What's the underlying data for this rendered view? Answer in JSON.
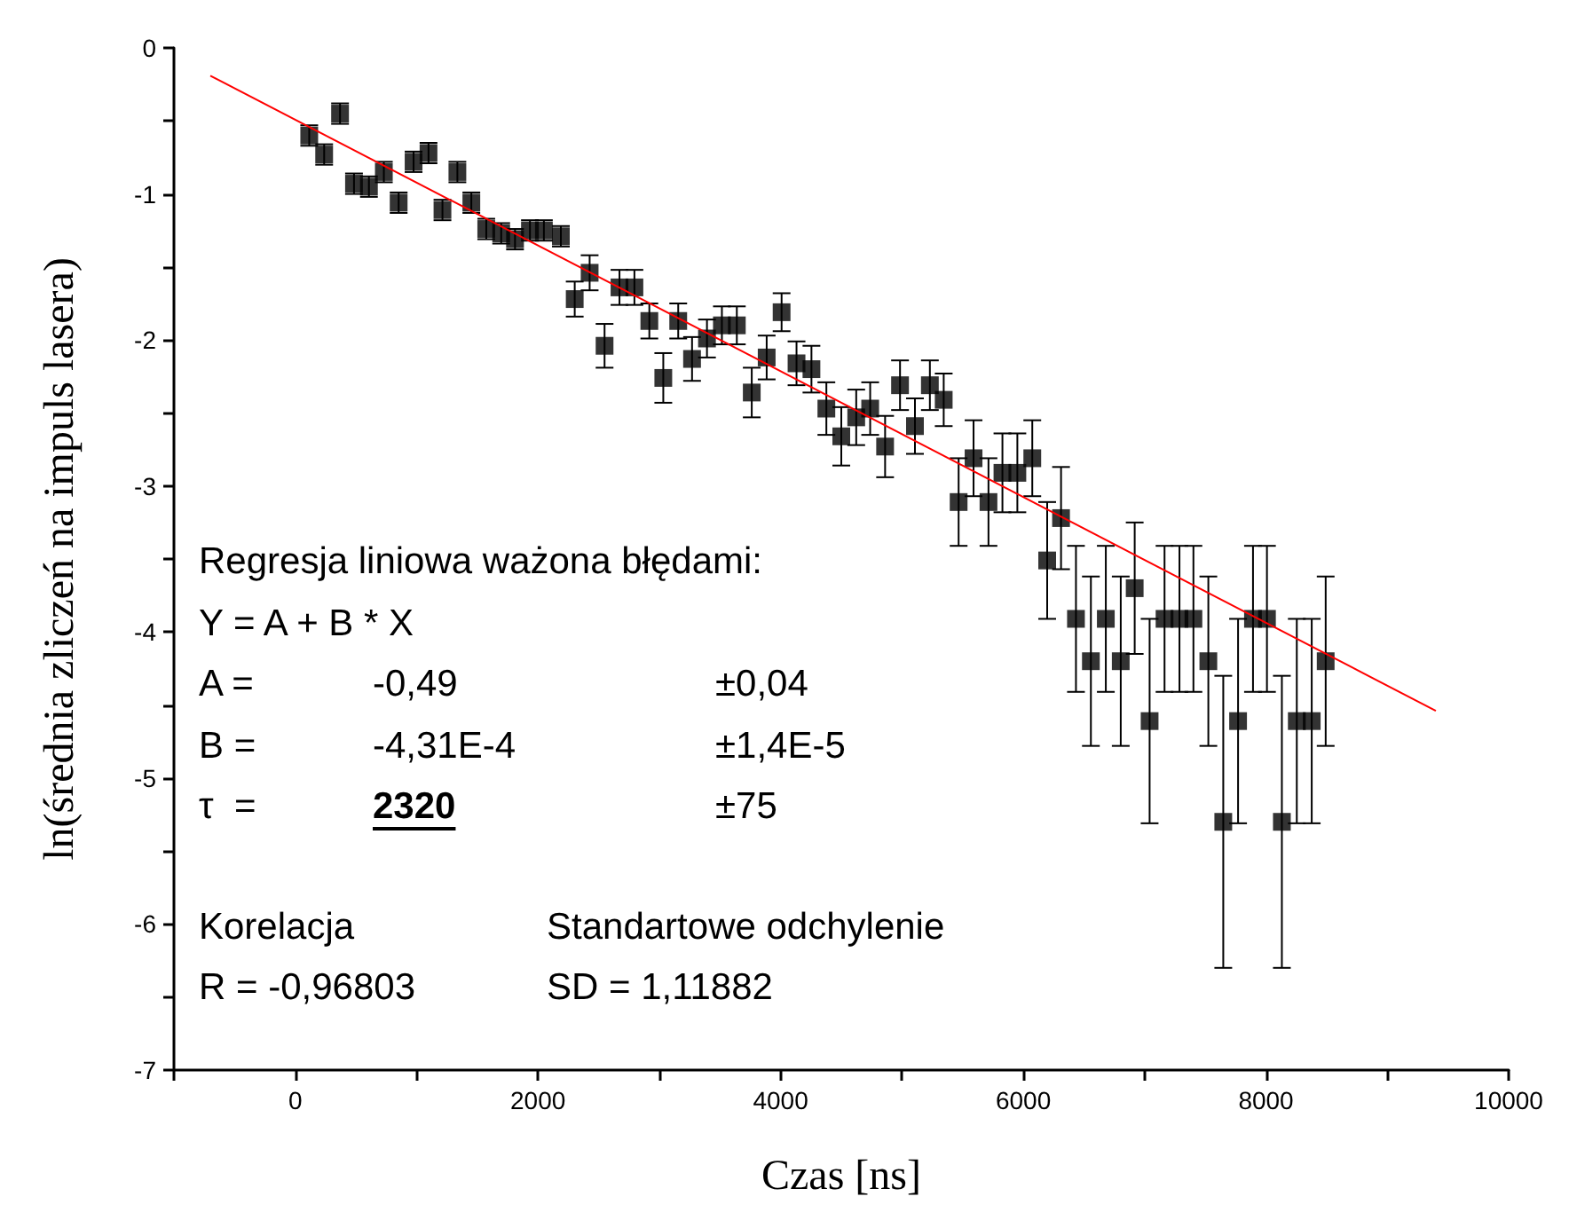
{
  "chart_data": {
    "type": "scatter",
    "xlabel": "Czas [ns]",
    "ylabel": "ln(średnia zliczeń na impuls lasera)",
    "xlim": [
      -1000,
      10000
    ],
    "xticks": [
      {
        "value": -1000,
        "label": null
      },
      0,
      {
        "value": 1000,
        "label": null
      },
      2000,
      {
        "value": 3000,
        "label": null
      },
      4000,
      {
        "value": 5000,
        "label": null
      },
      6000,
      {
        "value": 7000,
        "label": null
      },
      8000,
      {
        "value": 9000,
        "label": null
      },
      10000
    ],
    "ylim": [
      -7,
      0
    ],
    "yticks": [
      -7,
      {
        "value": -6.5,
        "label": null
      },
      -6,
      {
        "value": -5.5,
        "label": null
      },
      -5,
      {
        "value": -4.5,
        "label": null
      },
      -4,
      {
        "value": -3.5,
        "label": null
      },
      -3,
      {
        "value": -2.5,
        "label": null
      },
      -2,
      {
        "value": -1.5,
        "label": null
      },
      -1,
      {
        "value": -0.5,
        "label": null
      },
      0
    ],
    "series": [
      {
        "marker": "square",
        "color": "#000000",
        "x": [
          115,
          238,
          369,
          484,
          607,
          730,
          852,
          975,
          1098,
          1213,
          1336,
          1451,
          1574,
          1697,
          1811,
          1934,
          2049,
          2189,
          2303,
          2426,
          2549,
          2672,
          2795,
          2918,
          3033,
          3156,
          3270,
          3393,
          3516,
          3639,
          3762,
          3885,
          4008,
          4131,
          4254,
          4377,
          4500,
          4623,
          4738,
          4861,
          4984,
          5107,
          5230,
          5344,
          5467,
          5590,
          5713,
          5828,
          5951,
          6074,
          6197,
          6311,
          6434,
          6557,
          6680,
          6803,
          6918,
          7041,
          7164,
          7287,
          7402,
          7525,
          7648,
          7770,
          7893,
          8008,
          8131,
          8254,
          8377,
          8492
        ],
        "values": [
          -0.6,
          -0.73,
          -0.45,
          -0.93,
          -0.95,
          -0.85,
          -1.06,
          -0.78,
          -0.72,
          -1.11,
          -0.85,
          -1.06,
          -1.24,
          -1.27,
          -1.31,
          -1.25,
          -1.25,
          -1.29,
          -1.72,
          -1.54,
          -2.04,
          -1.64,
          -1.64,
          -1.87,
          -2.26,
          -1.87,
          -2.13,
          -1.99,
          -1.9,
          -1.9,
          -2.36,
          -2.12,
          -1.81,
          -2.16,
          -2.2,
          -2.47,
          -2.66,
          -2.53,
          -2.47,
          -2.73,
          -2.31,
          -2.59,
          -2.31,
          -2.41,
          -3.11,
          -2.81,
          -3.11,
          -2.91,
          -2.91,
          -2.81,
          -3.51,
          -3.22,
          -3.91,
          -4.2,
          -3.91,
          -4.2,
          -3.7,
          -4.61,
          -3.91,
          -3.91,
          -3.91,
          -4.2,
          -5.3,
          -4.61,
          -3.91,
          -3.91,
          -5.3,
          -4.61,
          -4.61,
          -4.2
        ],
        "errors": [
          0.07,
          0.07,
          0.07,
          0.07,
          0.07,
          0.07,
          0.07,
          0.07,
          0.07,
          0.07,
          0.07,
          0.07,
          0.07,
          0.07,
          0.07,
          0.07,
          0.07,
          0.07,
          0.12,
          0.12,
          0.15,
          0.12,
          0.12,
          0.12,
          0.17,
          0.12,
          0.15,
          0.13,
          0.13,
          0.13,
          0.17,
          0.15,
          0.13,
          0.15,
          0.16,
          0.18,
          0.2,
          0.19,
          0.18,
          0.21,
          0.17,
          0.19,
          0.17,
          0.18,
          0.3,
          0.26,
          0.3,
          0.27,
          0.27,
          0.26,
          0.4,
          0.35,
          0.5,
          0.58,
          0.5,
          0.58,
          0.45,
          0.7,
          0.5,
          0.5,
          0.5,
          0.58,
          1.0,
          0.7,
          0.5,
          0.5,
          1.0,
          0.7,
          0.7,
          0.58
        ]
      },
      {
        "type": "line",
        "color": "#ff0000",
        "x": [
          -700,
          9400
        ],
        "values": [
          -0.19,
          -4.54
        ]
      }
    ],
    "annotations": [
      "Regresja liniowa ważona błędami:",
      "Y = A + B * X",
      "A =",
      "-0,49",
      "±0,04",
      "B =",
      "-4,31E-4",
      "±1,4E-5",
      "τ  =",
      "2320",
      "±75",
      "Korelacja",
      "Standartowe odchylenie",
      "R = -0,96803",
      "SD = 1,11882"
    ]
  }
}
